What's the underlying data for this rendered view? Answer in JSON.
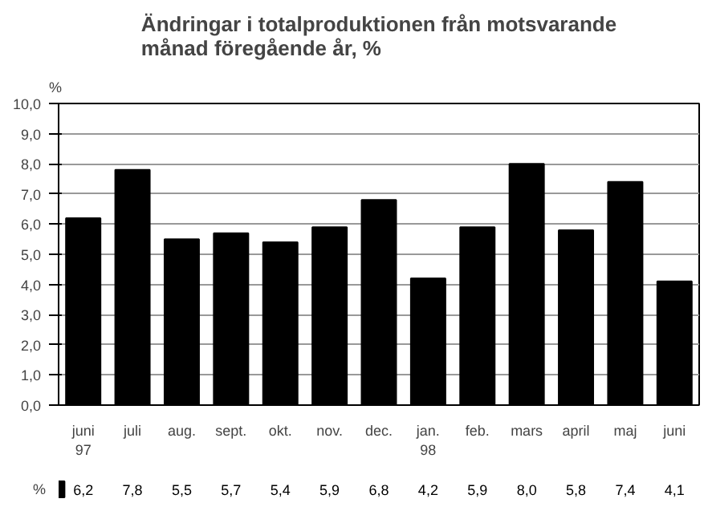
{
  "chart_data": {
    "type": "bar",
    "title": "Ändringar i totalproduktionen från motsvarande\nmånad föregående år, %",
    "ylabel": "%",
    "categories": [
      "juni\n97",
      "juli",
      "aug.",
      "sept.",
      "okt.",
      "nov.",
      "dec.",
      "jan.\n98",
      "feb.",
      "mars",
      "april",
      "maj",
      "juni"
    ],
    "series": [
      {
        "name": "%",
        "color": "#000000",
        "values": [
          6.2,
          7.8,
          5.5,
          5.7,
          5.4,
          5.9,
          6.8,
          4.2,
          5.9,
          8.0,
          5.8,
          7.4,
          4.1
        ],
        "value_labels": [
          "6,2",
          "7,8",
          "5,5",
          "5,7",
          "5,4",
          "5,9",
          "6,8",
          "4,2",
          "5,9",
          "8,0",
          "5,8",
          "7,4",
          "4,1"
        ]
      }
    ],
    "ylim": [
      0,
      10
    ],
    "yticks": [
      {
        "value": 0,
        "label": "0,0"
      },
      {
        "value": 1,
        "label": "1,0"
      },
      {
        "value": 2,
        "label": "2,0"
      },
      {
        "value": 3,
        "label": "3,0"
      },
      {
        "value": 4,
        "label": "4,0"
      },
      {
        "value": 5,
        "label": "5,0"
      },
      {
        "value": 6,
        "label": "6,0"
      },
      {
        "value": 7,
        "label": "7,0"
      },
      {
        "value": 8,
        "label": "8,0"
      },
      {
        "value": 9,
        "label": "9,0"
      },
      {
        "value": 10,
        "label": "10,0"
      }
    ],
    "grid": "y"
  }
}
